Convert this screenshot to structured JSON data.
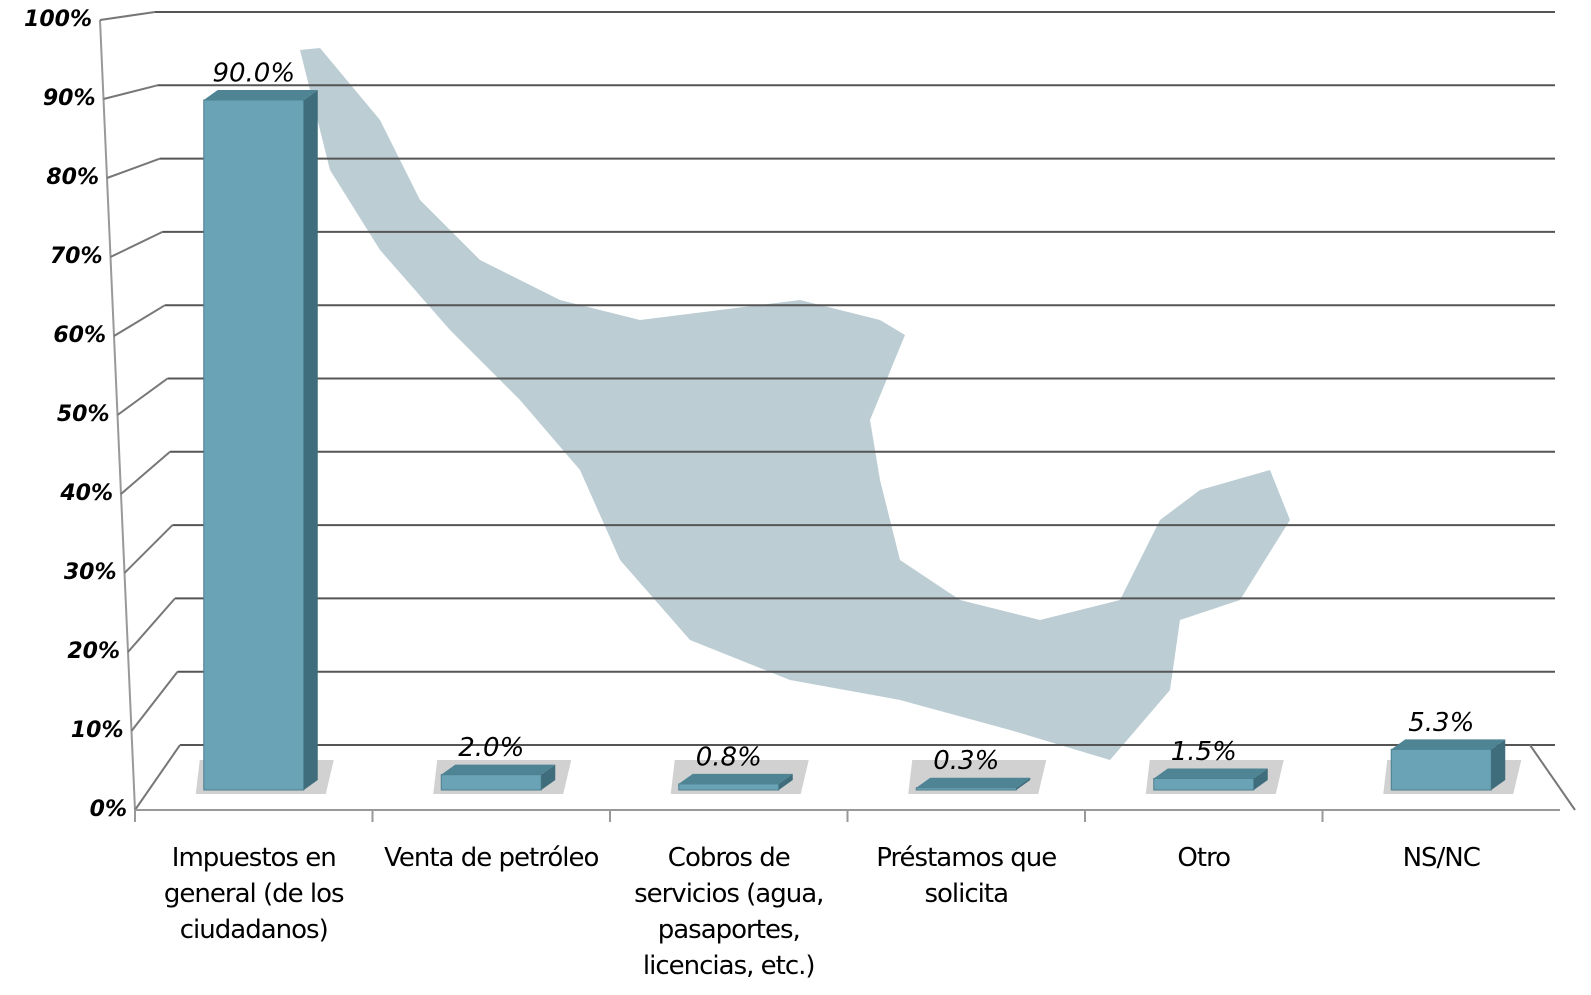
{
  "chart_data": {
    "type": "bar3d",
    "categories": [
      "Impuestos en general (de los ciudadanos)",
      "Venta de petróleo",
      "Cobros de servicios (agua, pasaportes, licencias, etc.)",
      "Préstamos que solicita",
      "Otro",
      "NS/NC"
    ],
    "values": [
      90.0,
      2.0,
      0.8,
      0.3,
      1.5,
      5.3
    ],
    "value_labels": [
      "90.0%",
      "2.0%",
      "0.8%",
      "0.3%",
      "1.5%",
      "5.3%"
    ],
    "color": "#6aa3b5",
    "ylim": [
      0,
      100
    ],
    "yticks": [
      {
        "value": 0,
        "label": "0%"
      },
      {
        "value": 10,
        "label": "10%"
      },
      {
        "value": 20,
        "label": "20%"
      },
      {
        "value": 30,
        "label": "30%"
      },
      {
        "value": 40,
        "label": "40%"
      },
      {
        "value": 50,
        "label": "50%"
      },
      {
        "value": 60,
        "label": "60%"
      },
      {
        "value": 70,
        "label": "70%"
      },
      {
        "value": 80,
        "label": "80%"
      },
      {
        "value": 90,
        "label": "90%"
      },
      {
        "value": 100,
        "label": "100%"
      }
    ],
    "grid": true
  }
}
